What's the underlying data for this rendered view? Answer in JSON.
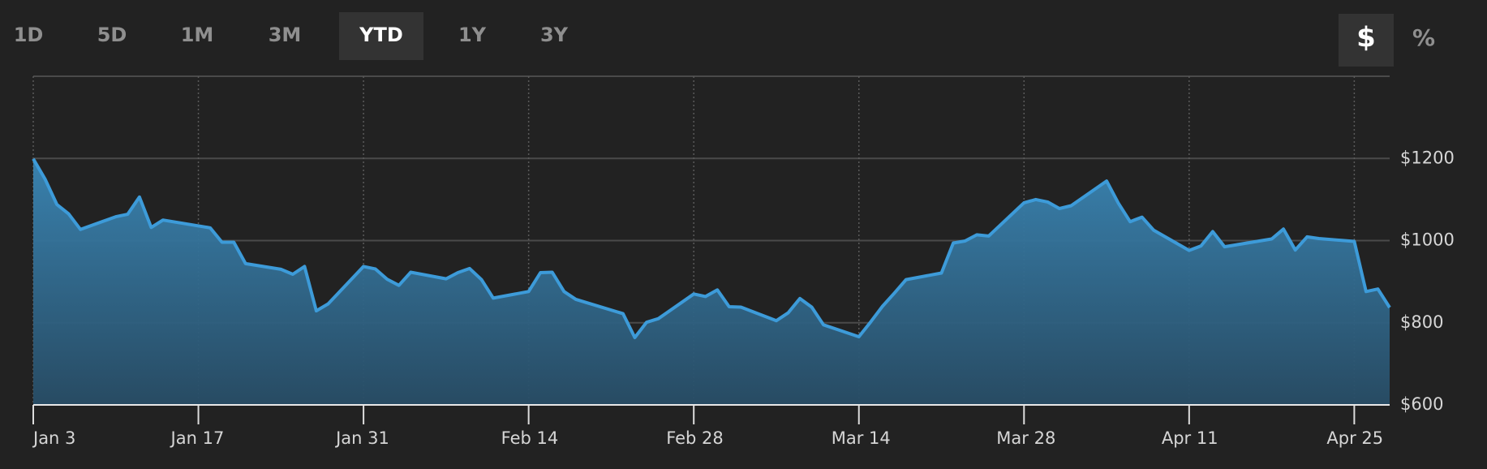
{
  "controls": {
    "ranges": [
      "1D",
      "5D",
      "1M",
      "3M",
      "YTD",
      "1Y",
      "3Y"
    ],
    "selected_range": 4,
    "units": [
      "$",
      "%"
    ],
    "selected_unit": 0
  },
  "chart_data": {
    "type": "area",
    "x": [
      "Jan 3",
      "Jan 4",
      "Jan 5",
      "Jan 6",
      "Jan 7",
      "Jan 10",
      "Jan 11",
      "Jan 12",
      "Jan 13",
      "Jan 14",
      "Jan 18",
      "Jan 19",
      "Jan 20",
      "Jan 21",
      "Jan 24",
      "Jan 25",
      "Jan 26",
      "Jan 27",
      "Jan 28",
      "Jan 31",
      "Feb 1",
      "Feb 2",
      "Feb 3",
      "Feb 4",
      "Feb 7",
      "Feb 8",
      "Feb 9",
      "Feb 10",
      "Feb 11",
      "Feb 14",
      "Feb 15",
      "Feb 16",
      "Feb 17",
      "Feb 18",
      "Feb 22",
      "Feb 23",
      "Feb 24",
      "Feb 25",
      "Feb 28",
      "Mar 1",
      "Mar 2",
      "Mar 3",
      "Mar 4",
      "Mar 7",
      "Mar 8",
      "Mar 9",
      "Mar 10",
      "Mar 11",
      "Mar 14",
      "Mar 15",
      "Mar 16",
      "Mar 17",
      "Mar 18",
      "Mar 21",
      "Mar 22",
      "Mar 23",
      "Mar 24",
      "Mar 25",
      "Mar 28",
      "Mar 29",
      "Mar 30",
      "Mar 31",
      "Apr 1",
      "Apr 4",
      "Apr 5",
      "Apr 6",
      "Apr 7",
      "Apr 8",
      "Apr 11",
      "Apr 12",
      "Apr 13",
      "Apr 14",
      "Apr 18",
      "Apr 19",
      "Apr 20",
      "Apr 21",
      "Apr 22",
      "Apr 25",
      "Apr 26",
      "Apr 27",
      "Apr 28"
    ],
    "series": [
      {
        "color": "#3d9bd9",
        "values": [
          1199,
          1150,
          1088,
          1065,
          1027,
          1058,
          1064,
          1106,
          1032,
          1050,
          1031,
          996,
          996,
          944,
          930,
          918,
          937,
          829,
          846,
          937,
          931,
          906,
          891,
          923,
          907,
          922,
          932,
          905,
          860,
          876,
          922,
          923,
          876,
          857,
          822,
          764,
          801,
          810,
          870,
          864,
          880,
          839,
          838,
          805,
          824,
          859,
          838,
          795,
          766,
          802,
          840,
          872,
          905,
          921,
          994,
          999,
          1014,
          1011,
          1092,
          1100,
          1094,
          1078,
          1085,
          1145,
          1091,
          1046,
          1057,
          1025,
          976,
          987,
          1022,
          985,
          1004,
          1028,
          977,
          1009,
          1005,
          998,
          876,
          882,
          837
        ]
      }
    ],
    "xlim": [
      "Jan 3",
      "Apr 28"
    ],
    "xticks": [
      "Jan 3",
      "Jan 17",
      "Jan 31",
      "Feb 14",
      "Feb 28",
      "Mar 14",
      "Mar 28",
      "Apr 11",
      "Apr 25"
    ],
    "ylim": [
      600,
      1400
    ],
    "yticks": [
      {
        "value": 600,
        "label": "$600"
      },
      {
        "value": 800,
        "label": "$800"
      },
      {
        "value": 1000,
        "label": "$1000"
      },
      {
        "value": 1200,
        "label": "$1200"
      }
    ],
    "grid": true
  }
}
